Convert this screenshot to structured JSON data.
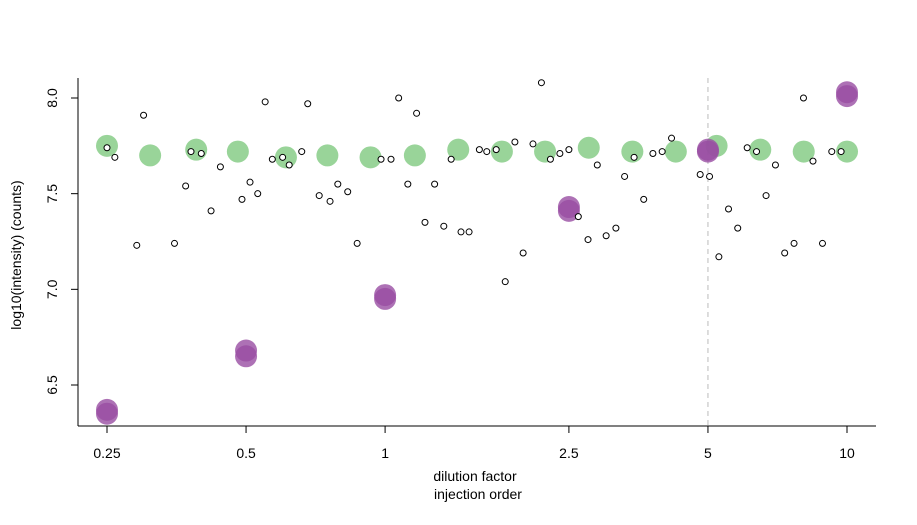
{
  "chart_data": {
    "type": "scatter",
    "xlabel": "dilution factor",
    "xlabel2": "injection order",
    "ylabel": "log10(intensity) (counts)",
    "x_scale": "log",
    "xlim": [
      0.25,
      10
    ],
    "ylim": [
      6.27,
      8.1
    ],
    "x_ticks": [
      {
        "value": 0.25,
        "label": "0.25"
      },
      {
        "value": 0.5,
        "label": "0.5"
      },
      {
        "value": 1,
        "label": "1"
      },
      {
        "value": 2.5,
        "label": "2.5"
      },
      {
        "value": 5,
        "label": "5"
      },
      {
        "value": 10,
        "label": "10"
      }
    ],
    "y_ticks": [
      {
        "value": 6.5,
        "label": "6.5"
      },
      {
        "value": 7.0,
        "label": "7.0"
      },
      {
        "value": 7.5,
        "label": "7.5"
      },
      {
        "value": 8.0,
        "label": "8.0"
      }
    ],
    "reference_line": {
      "x": 5,
      "style": "dashed",
      "color": "#bbbbbb"
    },
    "colors": {
      "green": "#7fc97f",
      "purple": "#984ea3",
      "open": "#000000"
    },
    "series": [
      {
        "marker": "large-filled-circle",
        "color": "#7fc97f",
        "points": [
          [
            0.25,
            7.75
          ],
          [
            0.31,
            7.7
          ],
          [
            0.39,
            7.73
          ],
          [
            0.48,
            7.72
          ],
          [
            0.61,
            7.69
          ],
          [
            0.75,
            7.7
          ],
          [
            0.93,
            7.69
          ],
          [
            1.16,
            7.7
          ],
          [
            1.44,
            7.73
          ],
          [
            1.79,
            7.72
          ],
          [
            2.22,
            7.72
          ],
          [
            2.76,
            7.74
          ],
          [
            3.43,
            7.72
          ],
          [
            4.26,
            7.72
          ],
          [
            5.22,
            7.75
          ],
          [
            6.49,
            7.73
          ],
          [
            8.06,
            7.72
          ],
          [
            10.0,
            7.72
          ]
        ]
      },
      {
        "marker": "large-filled-circle",
        "color": "#984ea3",
        "points": [
          [
            0.25,
            6.37
          ],
          [
            0.25,
            6.35
          ],
          [
            0.5,
            6.68
          ],
          [
            0.5,
            6.65
          ],
          [
            1,
            6.97
          ],
          [
            1,
            6.95
          ],
          [
            2.5,
            7.43
          ],
          [
            2.5,
            7.41
          ],
          [
            5,
            7.72
          ],
          [
            5,
            7.73
          ],
          [
            10,
            8.03
          ],
          [
            10,
            8.01
          ]
        ]
      },
      {
        "marker": "open-circle",
        "color": "#000000",
        "points": [
          [
            0.25,
            7.74
          ],
          [
            0.26,
            7.69
          ],
          [
            0.29,
            7.23
          ],
          [
            0.3,
            7.91
          ],
          [
            0.35,
            7.24
          ],
          [
            0.37,
            7.54
          ],
          [
            0.38,
            7.72
          ],
          [
            0.4,
            7.71
          ],
          [
            0.42,
            7.41
          ],
          [
            0.44,
            7.64
          ],
          [
            0.49,
            7.47
          ],
          [
            0.51,
            7.56
          ],
          [
            0.53,
            7.5
          ],
          [
            0.55,
            7.98
          ],
          [
            0.57,
            7.68
          ],
          [
            0.6,
            7.69
          ],
          [
            0.62,
            7.65
          ],
          [
            0.66,
            7.72
          ],
          [
            0.68,
            7.97
          ],
          [
            0.72,
            7.49
          ],
          [
            0.76,
            7.46
          ],
          [
            0.79,
            7.55
          ],
          [
            0.83,
            7.51
          ],
          [
            0.87,
            7.24
          ],
          [
            0.98,
            7.68
          ],
          [
            1.03,
            7.68
          ],
          [
            1.07,
            8.0
          ],
          [
            1.12,
            7.55
          ],
          [
            1.17,
            7.92
          ],
          [
            1.22,
            7.35
          ],
          [
            1.28,
            7.55
          ],
          [
            1.34,
            7.33
          ],
          [
            1.39,
            7.68
          ],
          [
            1.46,
            7.3
          ],
          [
            1.52,
            7.3
          ],
          [
            1.6,
            7.73
          ],
          [
            1.66,
            7.72
          ],
          [
            1.74,
            7.73
          ],
          [
            1.82,
            7.04
          ],
          [
            1.91,
            7.77
          ],
          [
            1.99,
            7.19
          ],
          [
            2.09,
            7.76
          ],
          [
            2.18,
            8.08
          ],
          [
            2.28,
            7.68
          ],
          [
            2.39,
            7.71
          ],
          [
            2.5,
            7.73
          ],
          [
            2.62,
            7.38
          ],
          [
            2.75,
            7.26
          ],
          [
            2.88,
            7.65
          ],
          [
            3.01,
            7.28
          ],
          [
            3.16,
            7.32
          ],
          [
            3.3,
            7.59
          ],
          [
            3.46,
            7.69
          ],
          [
            3.63,
            7.47
          ],
          [
            3.8,
            7.71
          ],
          [
            3.98,
            7.72
          ],
          [
            4.17,
            7.79
          ],
          [
            4.81,
            7.6
          ],
          [
            5.04,
            7.59
          ],
          [
            5.28,
            7.17
          ],
          [
            5.54,
            7.42
          ],
          [
            5.8,
            7.32
          ],
          [
            6.08,
            7.74
          ],
          [
            6.37,
            7.72
          ],
          [
            6.68,
            7.49
          ],
          [
            7.0,
            7.65
          ],
          [
            7.33,
            7.19
          ],
          [
            7.68,
            7.24
          ],
          [
            8.05,
            8.0
          ],
          [
            8.44,
            7.67
          ],
          [
            8.85,
            7.24
          ],
          [
            9.27,
            7.72
          ],
          [
            9.71,
            7.72
          ]
        ]
      }
    ]
  }
}
